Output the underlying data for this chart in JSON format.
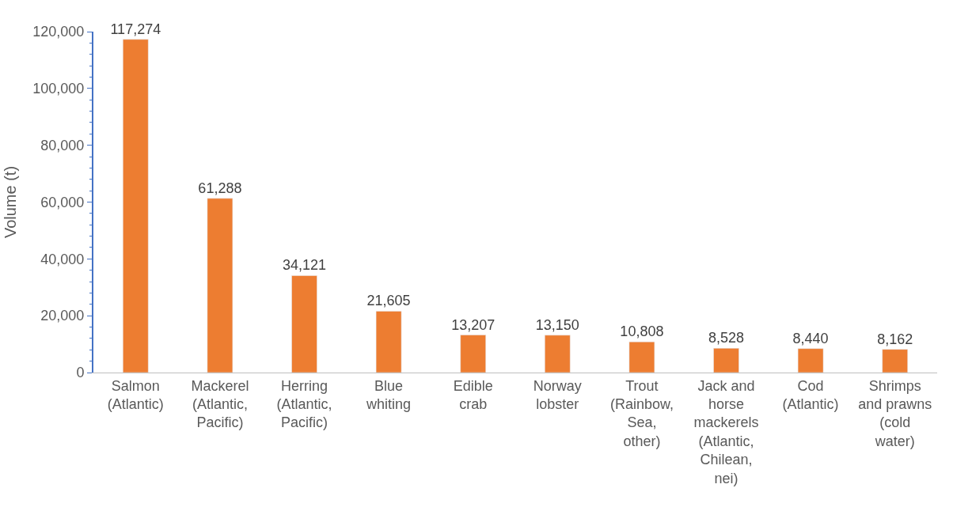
{
  "chart_data": {
    "type": "bar",
    "ylabel": "Volume (t)",
    "categories": [
      "Salmon (Atlantic)",
      "Mackerel (Atlantic, Pacific)",
      "Herring (Atlantic, Pacific)",
      "Blue whiting",
      "Edible crab",
      "Norway lobster",
      "Trout (Rainbow, Sea, other)",
      "Jack and horse mackerels (Atlantic, Chilean, nei)",
      "Cod (Atlantic)",
      "Shrimps and prawns (cold water)"
    ],
    "values": [
      117274,
      61288,
      34121,
      21605,
      13207,
      13150,
      10808,
      8528,
      8440,
      8162
    ],
    "value_labels": [
      "117,274",
      "61,288",
      "34,121",
      "21,605",
      "13,207",
      "13,150",
      "10,808",
      "8,528",
      "8,440",
      "8,162"
    ],
    "color": "#ed7d31",
    "ylim": [
      0,
      120000
    ],
    "yticks": [
      0,
      {
        "value": 20000,
        "label": "20,000"
      },
      {
        "value": 40000,
        "label": "40,000"
      },
      {
        "value": 60000,
        "label": "60,000"
      },
      {
        "value": 80000,
        "label": "80,000"
      },
      {
        "value": 100000,
        "label": "100,000"
      },
      {
        "value": 120000,
        "label": "120,000"
      }
    ]
  }
}
